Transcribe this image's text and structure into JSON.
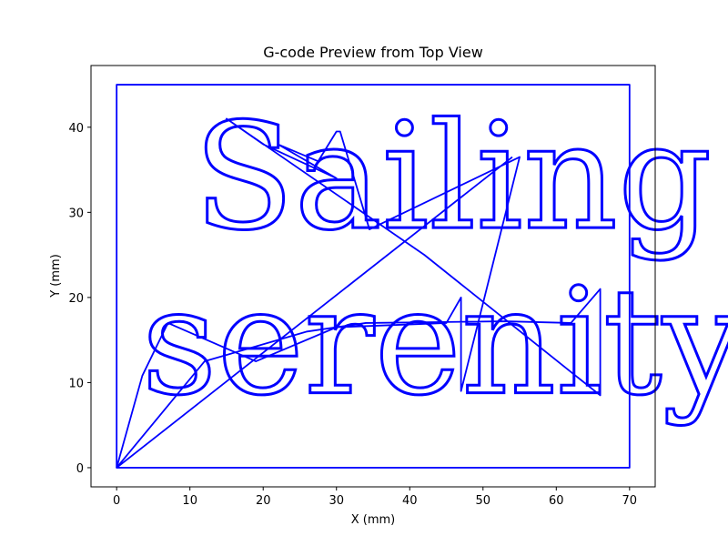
{
  "chart_data": {
    "type": "line",
    "title": "G-code Preview from Top View",
    "xlabel": "X (mm)",
    "ylabel": "Y (mm)",
    "xlim": [
      -3.5,
      73.5
    ],
    "ylim": [
      -2.25,
      47.25
    ],
    "xticks": [
      0,
      10,
      20,
      30,
      40,
      50,
      60,
      70
    ],
    "yticks": [
      0,
      10,
      20,
      30,
      40
    ],
    "grid": false,
    "line_color": "#0000ff",
    "series": [
      {
        "type": "line",
        "points": [
          [
            0,
            0
          ],
          [
            70,
            0
          ],
          [
            70,
            45
          ],
          [
            0,
            45
          ],
          [
            0,
            0
          ]
        ]
      },
      {
        "type": "line",
        "points": [
          [
            0,
            0
          ],
          [
            3.5,
            10.8
          ],
          [
            7,
            17
          ],
          [
            19,
            12.5
          ],
          [
            30,
            16.5
          ],
          [
            45,
            17
          ],
          [
            47,
            20
          ],
          [
            47,
            9
          ],
          [
            55,
            36.5
          ],
          [
            34.5,
            28
          ],
          [
            30.5,
            39.5
          ],
          [
            30,
            39.5
          ],
          [
            27.5,
            36
          ],
          [
            22,
            38
          ],
          [
            30,
            34
          ],
          [
            20,
            38
          ],
          [
            15,
            41
          ],
          [
            42,
            25
          ],
          [
            66,
            8.5
          ],
          [
            66,
            21
          ],
          [
            62,
            17
          ],
          [
            53,
            17.2
          ],
          [
            34,
            17
          ],
          [
            26,
            16
          ],
          [
            12,
            12.5
          ],
          [
            0,
            0
          ],
          [
            54,
            36.5
          ]
        ]
      }
    ],
    "text_paths": [
      {
        "text": "Sailing",
        "x": 10.5,
        "y": 28.2,
        "size_y": 13.5
      },
      {
        "text": "serenity!",
        "x": 3.4,
        "y": 8.8,
        "size_y": 13.5
      }
    ]
  }
}
